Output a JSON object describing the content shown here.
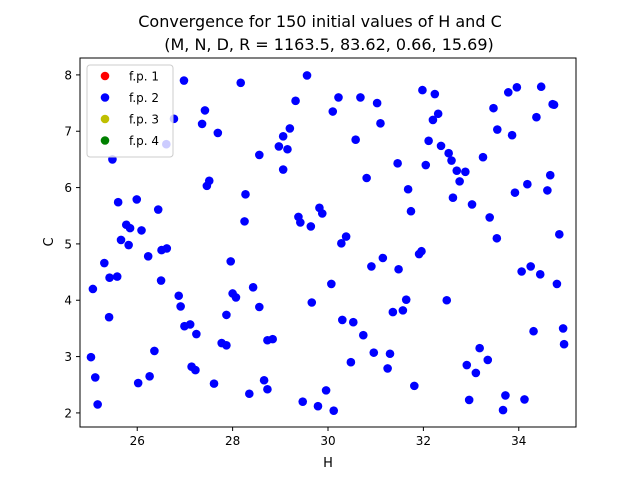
{
  "chart_data": {
    "type": "scatter",
    "title": "Convergence for 150 initial values of H and C",
    "subtitle": "(M, N, D, R = 1163.5, 83.62, 0.66, 15.69)",
    "xlabel": "H",
    "ylabel": "C",
    "xlim": [
      24.8,
      35.2
    ],
    "ylim": [
      1.75,
      8.3
    ],
    "xticks": [
      26,
      28,
      30,
      32,
      34
    ],
    "yticks": [
      2,
      3,
      4,
      5,
      6,
      7,
      8
    ],
    "grid": false,
    "legend_position": "top-left",
    "series": [
      {
        "name": "f.p. 1",
        "color": "#ff0000",
        "points": []
      },
      {
        "name": "f.p. 2",
        "color": "#0000ff",
        "points": [
          [
            25.07,
            4.2
          ],
          [
            25.03,
            2.99
          ],
          [
            25.12,
            2.63
          ],
          [
            25.17,
            2.15
          ],
          [
            25.31,
            4.66
          ],
          [
            25.41,
            3.7
          ],
          [
            25.42,
            4.4
          ],
          [
            25.48,
            6.5
          ],
          [
            25.58,
            4.42
          ],
          [
            25.6,
            5.74
          ],
          [
            25.66,
            5.07
          ],
          [
            25.77,
            5.34
          ],
          [
            25.82,
            4.98
          ],
          [
            25.85,
            5.28
          ],
          [
            25.99,
            5.79
          ],
          [
            26.02,
            2.53
          ],
          [
            26.09,
            5.24
          ],
          [
            26.23,
            4.78
          ],
          [
            26.26,
            2.65
          ],
          [
            26.36,
            3.1
          ],
          [
            26.44,
            5.61
          ],
          [
            26.5,
            4.35
          ],
          [
            26.51,
            4.89
          ],
          [
            26.62,
            4.92
          ],
          [
            26.61,
            6.77
          ],
          [
            26.77,
            7.22
          ],
          [
            26.87,
            4.08
          ],
          [
            26.91,
            3.89
          ],
          [
            26.98,
            7.9
          ],
          [
            26.99,
            3.54
          ],
          [
            27.11,
            3.57
          ],
          [
            27.14,
            2.82
          ],
          [
            27.22,
            2.76
          ],
          [
            27.24,
            3.4
          ],
          [
            27.36,
            7.13
          ],
          [
            27.42,
            7.37
          ],
          [
            27.46,
            6.03
          ],
          [
            27.51,
            6.12
          ],
          [
            27.61,
            2.52
          ],
          [
            27.69,
            6.97
          ],
          [
            27.77,
            3.24
          ],
          [
            27.87,
            3.2
          ],
          [
            27.87,
            3.74
          ],
          [
            27.96,
            4.69
          ],
          [
            28.0,
            4.12
          ],
          [
            28.07,
            4.05
          ],
          [
            28.17,
            7.86
          ],
          [
            28.25,
            5.4
          ],
          [
            28.27,
            5.88
          ],
          [
            28.35,
            2.34
          ],
          [
            28.43,
            4.23
          ],
          [
            28.56,
            6.58
          ],
          [
            28.56,
            3.88
          ],
          [
            28.66,
            2.58
          ],
          [
            28.73,
            2.42
          ],
          [
            28.73,
            3.29
          ],
          [
            28.84,
            3.31
          ],
          [
            28.97,
            6.73
          ],
          [
            29.06,
            6.32
          ],
          [
            29.06,
            6.91
          ],
          [
            29.15,
            6.68
          ],
          [
            29.2,
            7.05
          ],
          [
            29.32,
            7.54
          ],
          [
            29.38,
            5.48
          ],
          [
            29.42,
            5.38
          ],
          [
            29.47,
            2.2
          ],
          [
            29.56,
            7.99
          ],
          [
            29.64,
            5.31
          ],
          [
            29.66,
            3.96
          ],
          [
            29.79,
            2.12
          ],
          [
            29.82,
            5.64
          ],
          [
            29.88,
            5.54
          ],
          [
            29.96,
            2.4
          ],
          [
            30.07,
            4.29
          ],
          [
            30.1,
            7.35
          ],
          [
            30.12,
            2.04
          ],
          [
            30.22,
            7.6
          ],
          [
            30.28,
            5.01
          ],
          [
            30.3,
            3.65
          ],
          [
            30.38,
            5.13
          ],
          [
            30.48,
            2.9
          ],
          [
            30.53,
            3.61
          ],
          [
            30.58,
            6.85
          ],
          [
            30.68,
            7.6
          ],
          [
            30.74,
            3.38
          ],
          [
            30.81,
            6.17
          ],
          [
            30.91,
            4.6
          ],
          [
            30.96,
            3.07
          ],
          [
            31.03,
            7.5
          ],
          [
            31.1,
            7.14
          ],
          [
            31.15,
            4.75
          ],
          [
            31.25,
            2.79
          ],
          [
            31.3,
            3.05
          ],
          [
            31.36,
            3.79
          ],
          [
            31.46,
            6.43
          ],
          [
            31.48,
            4.55
          ],
          [
            31.57,
            3.82
          ],
          [
            31.64,
            4.01
          ],
          [
            31.68,
            5.97
          ],
          [
            31.74,
            5.58
          ],
          [
            31.81,
            2.48
          ],
          [
            31.91,
            4.82
          ],
          [
            31.96,
            4.87
          ],
          [
            31.98,
            7.73
          ],
          [
            32.05,
            6.4
          ],
          [
            32.11,
            6.83
          ],
          [
            32.2,
            7.2
          ],
          [
            32.24,
            7.66
          ],
          [
            32.31,
            7.31
          ],
          [
            32.37,
            6.74
          ],
          [
            32.49,
            4.0
          ],
          [
            32.53,
            6.61
          ],
          [
            32.59,
            6.48
          ],
          [
            32.62,
            5.82
          ],
          [
            32.7,
            6.3
          ],
          [
            32.76,
            6.11
          ],
          [
            32.88,
            6.28
          ],
          [
            32.91,
            2.85
          ],
          [
            32.96,
            2.23
          ],
          [
            33.02,
            5.7
          ],
          [
            33.1,
            2.71
          ],
          [
            33.18,
            3.15
          ],
          [
            33.25,
            6.54
          ],
          [
            33.35,
            2.94
          ],
          [
            33.39,
            5.47
          ],
          [
            33.47,
            7.41
          ],
          [
            33.54,
            5.1
          ],
          [
            33.55,
            7.03
          ],
          [
            33.67,
            2.05
          ],
          [
            33.72,
            2.31
          ],
          [
            33.78,
            7.69
          ],
          [
            33.86,
            6.93
          ],
          [
            33.92,
            5.91
          ],
          [
            33.96,
            7.78
          ],
          [
            34.06,
            4.51
          ],
          [
            34.12,
            2.24
          ],
          [
            34.18,
            6.06
          ],
          [
            34.25,
            4.6
          ],
          [
            34.31,
            3.45
          ],
          [
            34.37,
            7.25
          ],
          [
            34.45,
            4.46
          ],
          [
            34.47,
            7.79
          ],
          [
            34.6,
            5.95
          ],
          [
            34.66,
            6.22
          ],
          [
            34.74,
            7.47
          ],
          [
            34.8,
            4.29
          ],
          [
            34.85,
            5.17
          ],
          [
            34.93,
            3.5
          ],
          [
            34.95,
            3.22
          ],
          [
            34.71,
            7.48
          ]
        ]
      },
      {
        "name": "f.p. 3",
        "color": "#bfbf00",
        "points": []
      },
      {
        "name": "f.p. 4",
        "color": "#008000",
        "points": []
      }
    ]
  }
}
